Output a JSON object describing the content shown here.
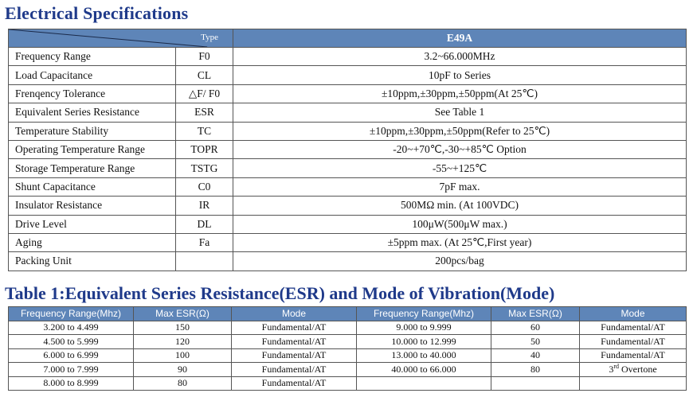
{
  "title": "Electrical Specifications",
  "spec": {
    "header": {
      "type_label": "Type",
      "model": "E49A"
    },
    "rows": [
      {
        "param": "Frequency Range",
        "sym": "F0",
        "val": "3.2~66.000MHz"
      },
      {
        "param": "Load Capacitance",
        "sym": "CL",
        "val": "10pF to Series"
      },
      {
        "param": "Frenqency Tolerance",
        "sym": "△F/ F0",
        "val": "±10ppm,±30ppm,±50ppm(At 25℃)"
      },
      {
        "param": "Equivalent  Series Resistance",
        "sym": "ESR",
        "val": "See Table 1"
      },
      {
        "param": "Temperature Stability",
        "sym": "TC",
        "val": "±10ppm,±30ppm,±50ppm(Refer to 25℃)"
      },
      {
        "param": "Operating Temperature Range",
        "sym": "TOPR",
        "val": "-20~+70℃,-30~+85℃ Option"
      },
      {
        "param": "Storage Temperature Range",
        "sym": "TSTG",
        "val": "-55~+125℃"
      },
      {
        "param": "Shunt Capacitance",
        "sym": "C0",
        "val": "7pF max."
      },
      {
        "param": "Insulator Resistance",
        "sym": "IR",
        "val": "500MΩ  min. (At 100VDC)"
      },
      {
        "param": "Drive Level",
        "sym": "DL",
        "val": "100μW(500μW max.)"
      },
      {
        "param": "Aging",
        "sym": "Fa",
        "val": "±5ppm max. (At 25℃,First year)"
      },
      {
        "param": "Packing Unit",
        "sym": "",
        "val": "200pcs/bag"
      }
    ]
  },
  "table1_title": "Table 1:Equivalent  Series Resistance(ESR) and Mode of Vibration(Mode)",
  "esr": {
    "headers": [
      "Frequency Range(Mhz)",
      "Max ESR(Ω)",
      "Mode",
      "Frequency Range(Mhz)",
      "Max ESR(Ω)",
      "Mode"
    ],
    "rows": [
      [
        "3.200 to 4.499",
        "150",
        "Fundamental/AT",
        "9.000 to 9.999",
        "60",
        "Fundamental/AT"
      ],
      [
        "4.500 to 5.999",
        "120",
        "Fundamental/AT",
        "10.000 to 12.999",
        "50",
        "Fundamental/AT"
      ],
      [
        "6.000 to 6.999",
        "100",
        "Fundamental/AT",
        "13.000 to 40.000",
        "40",
        "Fundamental/AT"
      ],
      [
        "7.000 to 7.999",
        "90",
        "Fundamental/AT",
        "40.000 to 66.000",
        "80",
        "3"
      ],
      [
        "8.000 to 8.999",
        "80",
        "Fundamental/AT",
        "",
        "",
        ""
      ]
    ],
    "overtone_sup": "rd",
    "overtone_suffix": " Overtone"
  }
}
